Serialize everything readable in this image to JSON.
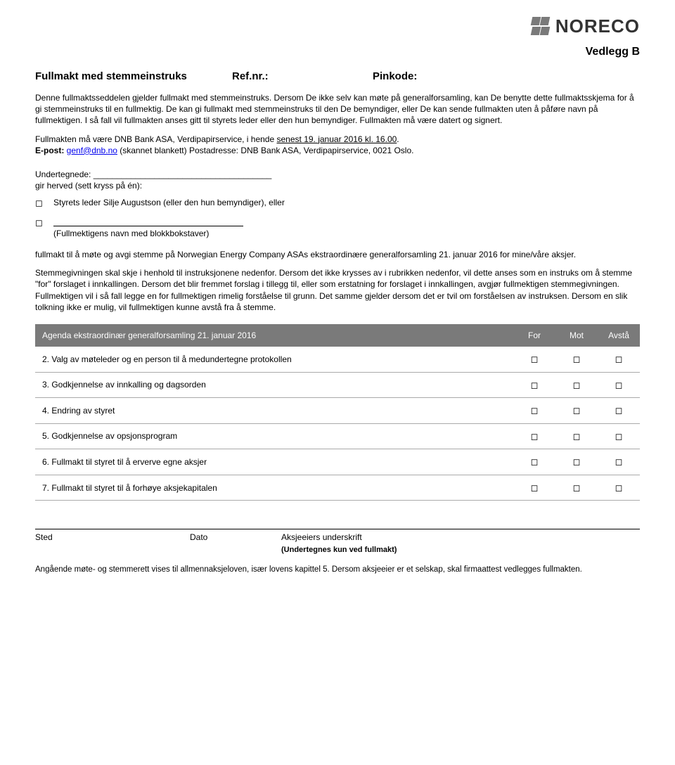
{
  "logo_text": "NORECO",
  "vedlegg": "Vedlegg B",
  "title": {
    "main": "Fullmakt med stemmeinstruks",
    "ref_label": "Ref.nr.:",
    "pin_label": "Pinkode:"
  },
  "para1": "Denne fullmaktsseddelen gjelder fullmakt med stemmeinstruks. Dersom De ikke selv kan møte på generalforsamling, kan De benytte dette fullmaktsskjema for å gi stemmeinstruks til en fullmektig. De kan gi fullmakt med stemmeinstruks til den De bemyndiger, eller De kan sende fullmakten uten å påføre navn på fullmektigen. I så fall vil fullmakten anses gitt til styrets leder eller den hun bemyndiger. Fullmakten må være datert og signert.",
  "para2_a": "Fullmakten må være DNB Bank ASA, Verdipapirservice, i hende ",
  "para2_deadline": "senest 19. januar 2016 kl. 16.00",
  "para2_b": ".",
  "epost_label": "E-post: ",
  "email_link": "genf@dnb.no",
  "epost_tail": " (skannet blankett) Postadresse: DNB Bank ASA, Verdipapirservice, 0021 Oslo.",
  "undertegnede_label": "Undertegnede:",
  "gir_herved": "gir herved (sett kryss på én):",
  "option1": "Styrets leder Silje Augustson (eller den hun bemyndiger), eller",
  "option2_caption": "(Fullmektigens navn med blokkbokstaver)",
  "para3": "fullmakt til å møte og avgi stemme på Norwegian Energy Company ASAs ekstraordinære generalforsamling 21. januar 2016 for mine/våre aksjer.",
  "para4": "Stemmegivningen skal skje i henhold til instruksjonene nedenfor. Dersom det ikke krysses av i rubrikken nedenfor, vil dette anses som en instruks om å stemme \"for\" forslaget i innkallingen. Dersom det blir fremmet forslag i tillegg til, eller som erstatning for forslaget i innkallingen, avgjør fullmektigen stemmegivningen. Fullmektigen vil i så fall legge en for fullmektigen rimelig forståelse til grunn. Det samme gjelder dersom det er tvil om forståelsen av instruksen. Dersom en slik tolkning ikke er mulig, vil fullmektigen kunne avstå fra å stemme.",
  "table": {
    "header": {
      "agenda": "Agenda ekstraordinær generalforsamling 21. januar 2016",
      "for": "For",
      "mot": "Mot",
      "avsta": "Avstå"
    },
    "rows": [
      {
        "num": "2.",
        "text": "Valg av møteleder og en person til å medundertegne protokollen"
      },
      {
        "num": "3.",
        "text": "Godkjennelse av innkalling og dagsorden"
      },
      {
        "num": "4.",
        "text": "Endring av styret"
      },
      {
        "num": "5.",
        "text": "Godkjennelse av opsjonsprogram"
      },
      {
        "num": "6.",
        "text": "Fullmakt til styret til å erverve egne aksjer"
      },
      {
        "num": "7.",
        "text": "Fullmakt til styret til å forhøye aksjekapitalen"
      }
    ]
  },
  "sig": {
    "sted": "Sted",
    "dato": "Dato",
    "underskrift": "Aksjeeiers underskrift",
    "note": "(Undertegnes kun ved fullmakt)"
  },
  "footnote": "Angående møte- og stemmerett vises til allmennaksjeloven, især lovens kapittel 5. Dersom aksjeeier er et selskap, skal firmaattest vedlegges fullmakten.",
  "checkbox_glyph": "◻"
}
